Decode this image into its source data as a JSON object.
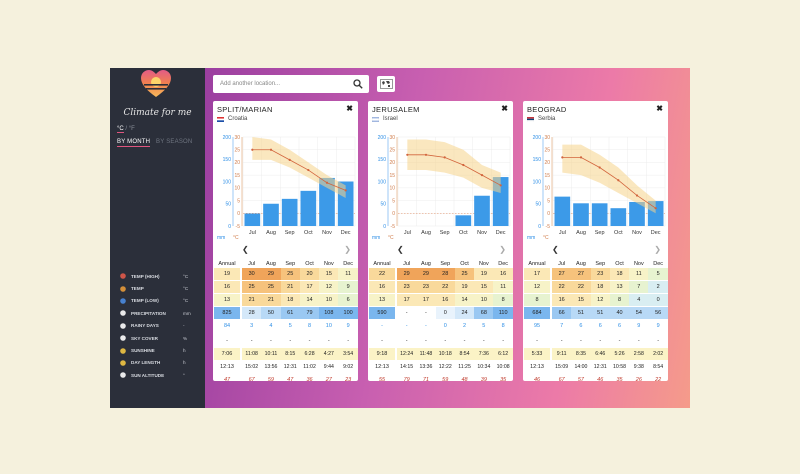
{
  "app": {
    "title": "Climate for me"
  },
  "units": {
    "celsius": "°C",
    "separator": "/",
    "fahrenheit": "°F"
  },
  "modes": {
    "by_month": "BY MONTH",
    "by_season": "BY SEASON"
  },
  "search": {
    "placeholder": "Add another location..."
  },
  "legend": [
    {
      "label": "TEMP (HIGH)",
      "unit": "°C",
      "icon": "thermometer-high-icon",
      "color": "#e05a4a"
    },
    {
      "label": "TEMP",
      "unit": "°C",
      "icon": "thermometer-icon",
      "color": "#e79a3a"
    },
    {
      "label": "TEMP (LOW)",
      "unit": "°C",
      "icon": "thermometer-low-icon",
      "color": "#4a8be0"
    },
    {
      "label": "PRECIPITATION",
      "unit": "mm",
      "icon": "raindrop-icon",
      "color": "#ffffff"
    },
    {
      "label": "RAINY DAYS",
      "unit": "-",
      "icon": "rain-cloud-icon",
      "color": "#ffffff"
    },
    {
      "label": "SKY COVER",
      "unit": "%",
      "icon": "cloud-icon",
      "color": "#ffffff"
    },
    {
      "label": "SUNSHINE",
      "unit": "h",
      "icon": "sun-icon",
      "color": "#f2c744"
    },
    {
      "label": "DAY LENGTH",
      "unit": "h",
      "icon": "day-length-icon",
      "color": "#f2c744"
    },
    {
      "label": "SUN ALTITUDE",
      "unit": "°",
      "icon": "sun-altitude-icon",
      "color": "#ffffff"
    }
  ],
  "table_headers": {
    "annual": "Annual",
    "months": [
      "Jul",
      "Aug",
      "Sep",
      "Oct",
      "Nov",
      "Dec"
    ]
  },
  "chart_units": {
    "mm": "mm",
    "c": "°C"
  },
  "chart_axes": {
    "mm_ticks": [
      "0",
      "50",
      "100",
      "150",
      "200"
    ],
    "c_ticks": [
      "-5",
      "0",
      "5",
      "10",
      "15",
      "20",
      "25",
      "30"
    ]
  },
  "cards": [
    {
      "title": "SPLIT/MARIAN",
      "country": "Croatia",
      "flag": "croatia",
      "chart_data": {
        "type": "bar",
        "categories": [
          "Jul",
          "Aug",
          "Sep",
          "Oct",
          "Nov",
          "Dec"
        ],
        "precipitation_mm": [
          28,
          50,
          61,
          79,
          108,
          100
        ],
        "temp_c": [
          25,
          25,
          21,
          17,
          12,
          9
        ],
        "temp_high_c": [
          30,
          29,
          25,
          20,
          15,
          11
        ],
        "temp_low_c": [
          21,
          21,
          18,
          14,
          10,
          6
        ]
      },
      "rows": {
        "high": {
          "annual": "19",
          "months": [
            "30",
            "29",
            "25",
            "20",
            "15",
            "11"
          ]
        },
        "temp": {
          "annual": "16",
          "months": [
            "25",
            "25",
            "21",
            "17",
            "12",
            "9"
          ]
        },
        "low": {
          "annual": "13",
          "months": [
            "21",
            "21",
            "18",
            "14",
            "10",
            "6"
          ]
        },
        "precip": {
          "annual": "825",
          "months": [
            "28",
            "50",
            "61",
            "79",
            "108",
            "100"
          ]
        },
        "rainy": {
          "annual": "84",
          "months": [
            "3",
            "4",
            "5",
            "8",
            "10",
            "9"
          ]
        },
        "sky": {
          "annual": "-",
          "months": [
            "-",
            "-",
            "-",
            "-",
            "-",
            "-"
          ]
        },
        "sunshine": {
          "annual": "7:06",
          "months": [
            "11:08",
            "10:11",
            "8:15",
            "6:28",
            "4:27",
            "3:54"
          ]
        },
        "daylength": {
          "annual": "12:13",
          "months": [
            "15:02",
            "13:56",
            "12:31",
            "11:02",
            "9:44",
            "9:02"
          ]
        },
        "altitude": {
          "annual": "47",
          "months": [
            "67",
            "59",
            "47",
            "36",
            "27",
            "23"
          ]
        }
      }
    },
    {
      "title": "JERUSALEM",
      "country": "Israel",
      "flag": "israel",
      "chart_data": {
        "type": "bar",
        "categories": [
          "Jul",
          "Aug",
          "Sep",
          "Oct",
          "Nov",
          "Dec"
        ],
        "precipitation_mm": [
          0,
          0,
          0,
          24,
          68,
          110
        ],
        "temp_c": [
          23,
          23,
          22,
          19,
          15,
          11
        ],
        "temp_high_c": [
          29,
          29,
          28,
          25,
          19,
          16
        ],
        "temp_low_c": [
          17,
          17,
          16,
          14,
          10,
          8
        ]
      },
      "rows": {
        "high": {
          "annual": "22",
          "months": [
            "29",
            "29",
            "28",
            "25",
            "19",
            "16"
          ]
        },
        "temp": {
          "annual": "16",
          "months": [
            "23",
            "23",
            "22",
            "19",
            "15",
            "11"
          ]
        },
        "low": {
          "annual": "13",
          "months": [
            "17",
            "17",
            "16",
            "14",
            "10",
            "8"
          ]
        },
        "precip": {
          "annual": "590",
          "months": [
            "-",
            "-",
            "0",
            "24",
            "68",
            "110"
          ]
        },
        "rainy": {
          "annual": "-",
          "months": [
            "-",
            "-",
            "0",
            "2",
            "5",
            "8"
          ]
        },
        "sky": {
          "annual": "-",
          "months": [
            "-",
            "-",
            "-",
            "-",
            "-",
            "-"
          ]
        },
        "sunshine": {
          "annual": "9:18",
          "months": [
            "12:24",
            "11:48",
            "10:18",
            "8:54",
            "7:36",
            "6:12"
          ]
        },
        "daylength": {
          "annual": "12:13",
          "months": [
            "14:15",
            "13:36",
            "12:22",
            "11:25",
            "10:34",
            "10:08"
          ]
        },
        "altitude": {
          "annual": "55",
          "months": [
            "79",
            "71",
            "59",
            "48",
            "39",
            "35"
          ]
        }
      }
    },
    {
      "title": "BEOGRAD",
      "country": "Serbia",
      "flag": "serbia",
      "chart_data": {
        "type": "bar",
        "categories": [
          "Jul",
          "Aug",
          "Sep",
          "Oct",
          "Nov",
          "Dec"
        ],
        "precipitation_mm": [
          66,
          51,
          51,
          40,
          54,
          56
        ],
        "temp_c": [
          22,
          22,
          18,
          13,
          7,
          2
        ],
        "temp_high_c": [
          27,
          27,
          23,
          18,
          11,
          5
        ],
        "temp_low_c": [
          16,
          15,
          12,
          8,
          4,
          0
        ]
      },
      "rows": {
        "high": {
          "annual": "17",
          "months": [
            "27",
            "27",
            "23",
            "18",
            "11",
            "5"
          ]
        },
        "temp": {
          "annual": "12",
          "months": [
            "22",
            "22",
            "18",
            "13",
            "7",
            "2"
          ]
        },
        "low": {
          "annual": "8",
          "months": [
            "16",
            "15",
            "12",
            "8",
            "4",
            "0"
          ]
        },
        "precip": {
          "annual": "684",
          "months": [
            "66",
            "51",
            "51",
            "40",
            "54",
            "56"
          ]
        },
        "rainy": {
          "annual": "95",
          "months": [
            "7",
            "6",
            "6",
            "6",
            "9",
            "9"
          ]
        },
        "sky": {
          "annual": "-",
          "months": [
            "-",
            "-",
            "-",
            "-",
            "-",
            "-"
          ]
        },
        "sunshine": {
          "annual": "5:33",
          "months": [
            "9:11",
            "8:35",
            "6:46",
            "5:26",
            "2:58",
            "2:02"
          ]
        },
        "daylength": {
          "annual": "12:13",
          "months": [
            "15:09",
            "14:00",
            "12:31",
            "10:58",
            "9:38",
            "8:54"
          ]
        },
        "altitude": {
          "annual": "46",
          "months": [
            "67",
            "57",
            "46",
            "35",
            "26",
            "22"
          ]
        }
      }
    }
  ]
}
